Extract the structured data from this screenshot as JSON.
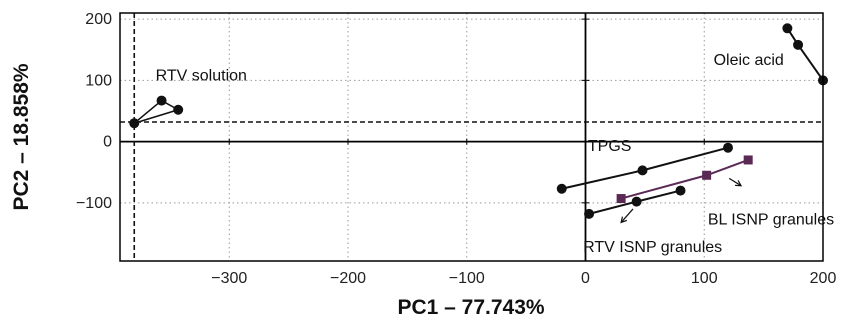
{
  "chart_data": {
    "type": "scatter",
    "title": "",
    "xlabel": "PC1 – 77.743%",
    "ylabel": "PC2 – 18.858%",
    "xlim": [
      -392,
      200
    ],
    "ylim": [
      -195,
      210
    ],
    "xticks": [
      -300,
      -200,
      -100,
      0,
      100,
      200
    ],
    "yticks": [
      200,
      100,
      0,
      -100
    ],
    "xtick_labels": [
      "−300",
      "−200",
      "−100",
      "0",
      "100",
      "200"
    ],
    "ytick_labels": [
      "200",
      "100",
      "0",
      "−100"
    ],
    "grid": true,
    "reference_lines": {
      "vertical_x": -380,
      "horizontal_y": 32
    },
    "groups": [
      {
        "label": "RTV solution",
        "color": "#111111",
        "marker": "circle",
        "shape": "triangle",
        "points": [
          [
            -380,
            30
          ],
          [
            -357,
            67
          ],
          [
            -343,
            52
          ]
        ]
      },
      {
        "label": "Oleic acid",
        "color": "#111111",
        "marker": "circle",
        "shape": "line",
        "points": [
          [
            170,
            185
          ],
          [
            179,
            158
          ],
          [
            200,
            100
          ]
        ]
      },
      {
        "label": "TPGS",
        "color": "#111111",
        "marker": "circle",
        "shape": "line",
        "points": [
          [
            -20,
            -77
          ],
          [
            48,
            -47
          ],
          [
            120,
            -10
          ]
        ]
      },
      {
        "label": "BL ISNP granules",
        "color": "#5a2a55",
        "marker": "square",
        "shape": "line",
        "points": [
          [
            30,
            -93
          ],
          [
            102,
            -55
          ],
          [
            137,
            -30
          ]
        ]
      },
      {
        "label": "RTV ISNP granules",
        "color": "#111111",
        "marker": "circle",
        "shape": "line",
        "points": [
          [
            3,
            -118
          ],
          [
            43,
            -98
          ],
          [
            80,
            -80
          ]
        ]
      }
    ]
  }
}
